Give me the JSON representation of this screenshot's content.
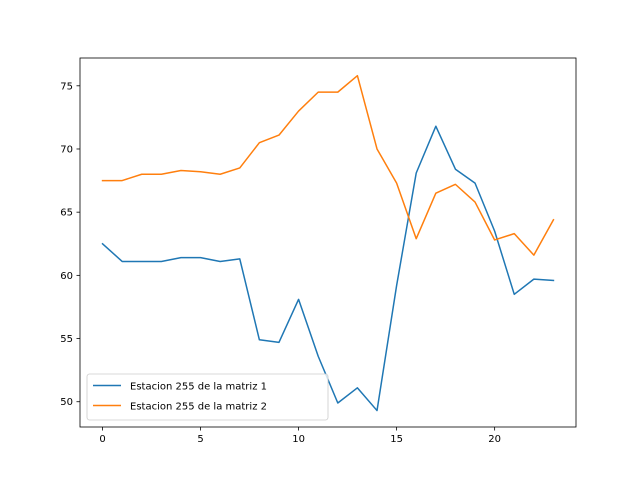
{
  "chart_data": {
    "type": "line",
    "x": [
      0,
      1,
      2,
      3,
      4,
      5,
      6,
      7,
      8,
      9,
      10,
      11,
      12,
      13,
      14,
      15,
      16,
      17,
      18,
      19,
      20,
      21,
      22,
      23
    ],
    "series": [
      {
        "name": "Estacion 255 de la matriz 1",
        "color": "#1f77b4",
        "values": [
          62.5,
          61.1,
          61.1,
          61.1,
          61.4,
          61.4,
          61.1,
          61.3,
          54.9,
          54.7,
          58.1,
          53.6,
          49.9,
          51.1,
          49.3,
          59.2,
          68.1,
          71.8,
          68.4,
          67.3,
          63.5,
          58.5,
          59.7,
          59.6
        ]
      },
      {
        "name": "Estacion 255 de la matriz 2",
        "color": "#ff7f0e",
        "values": [
          67.5,
          67.5,
          68.0,
          68.0,
          68.3,
          68.2,
          68.0,
          68.5,
          70.5,
          71.1,
          73.0,
          74.5,
          74.5,
          75.8,
          70.0,
          67.3,
          62.9,
          66.5,
          67.2,
          65.8,
          62.8,
          63.3,
          61.6,
          64.4
        ]
      }
    ],
    "xlim": [
      -1.15,
      24.15
    ],
    "ylim": [
      48.0,
      77.2
    ],
    "xticks": [
      "0",
      "5",
      "10",
      "15",
      "20"
    ],
    "yticks": [
      "50",
      "55",
      "60",
      "65",
      "70",
      "75"
    ],
    "grid": false,
    "legend_position": "lower-left",
    "title": "",
    "xlabel": "",
    "ylabel": ""
  }
}
